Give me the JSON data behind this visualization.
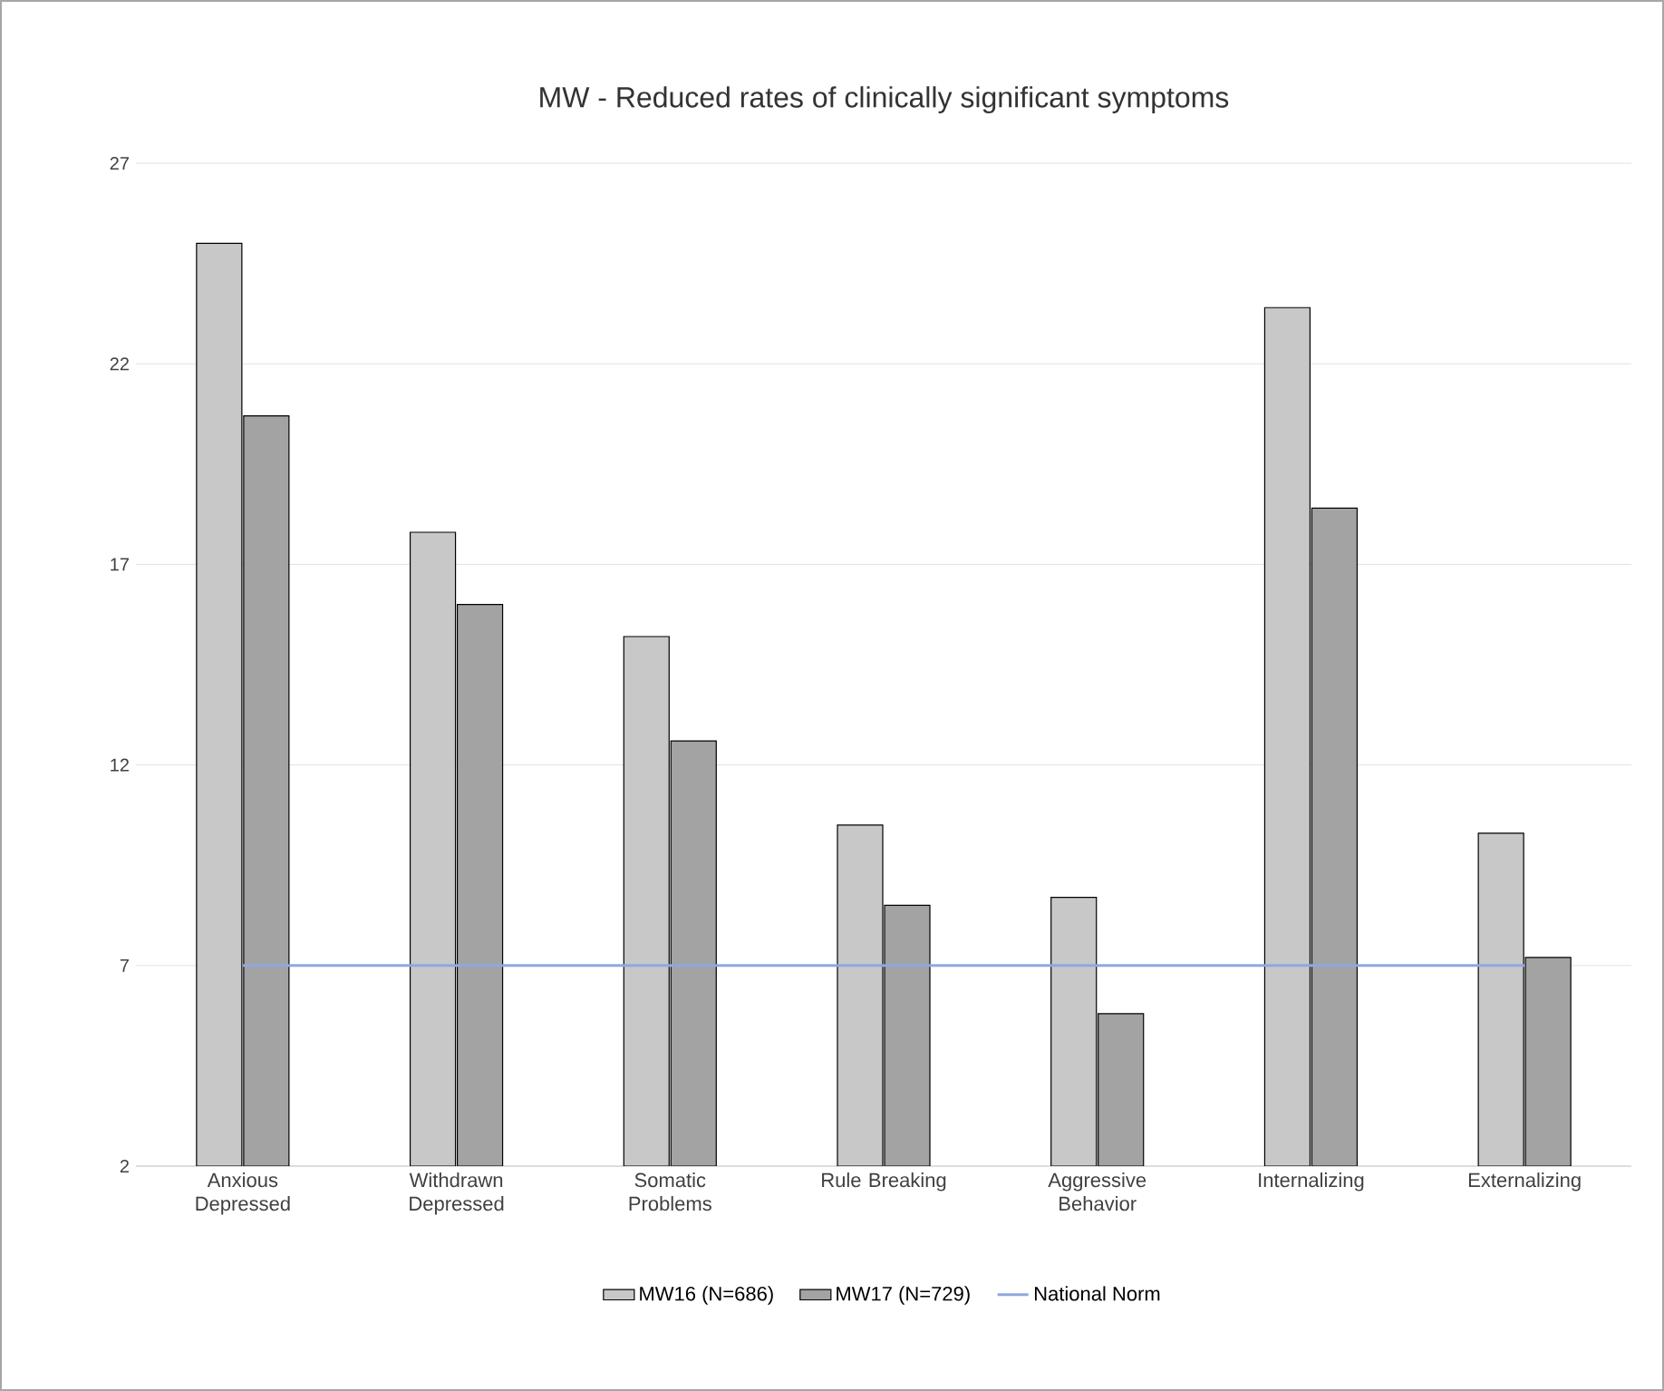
{
  "chart_data": {
    "type": "bar",
    "title": "MW - Reduced rates of clinically significant symptoms",
    "categories": [
      "Anxious Depressed",
      "Withdrawn Depressed",
      "Somatic Problems",
      "Rule Breaking",
      "Aggressive Behavior",
      "Internalizing",
      "Externalizing"
    ],
    "series": [
      {
        "name": "MW16 (N=686)",
        "color": "#c8c8c8",
        "values": [
          25.0,
          17.8,
          15.2,
          10.5,
          8.7,
          23.4,
          10.3
        ]
      },
      {
        "name": "MW17 (N=729)",
        "color": "#a3a3a3",
        "values": [
          20.7,
          16.0,
          12.6,
          8.5,
          5.8,
          18.4,
          7.2
        ]
      },
      {
        "name": "National Norm",
        "type": "line",
        "color": "#8fa9dc",
        "values": [
          7,
          7,
          7,
          7,
          7,
          7,
          7
        ]
      }
    ],
    "ylim": [
      2,
      27
    ],
    "yticks": [
      2,
      7,
      12,
      17,
      22,
      27
    ],
    "grid": "y",
    "legend": "bottom"
  }
}
